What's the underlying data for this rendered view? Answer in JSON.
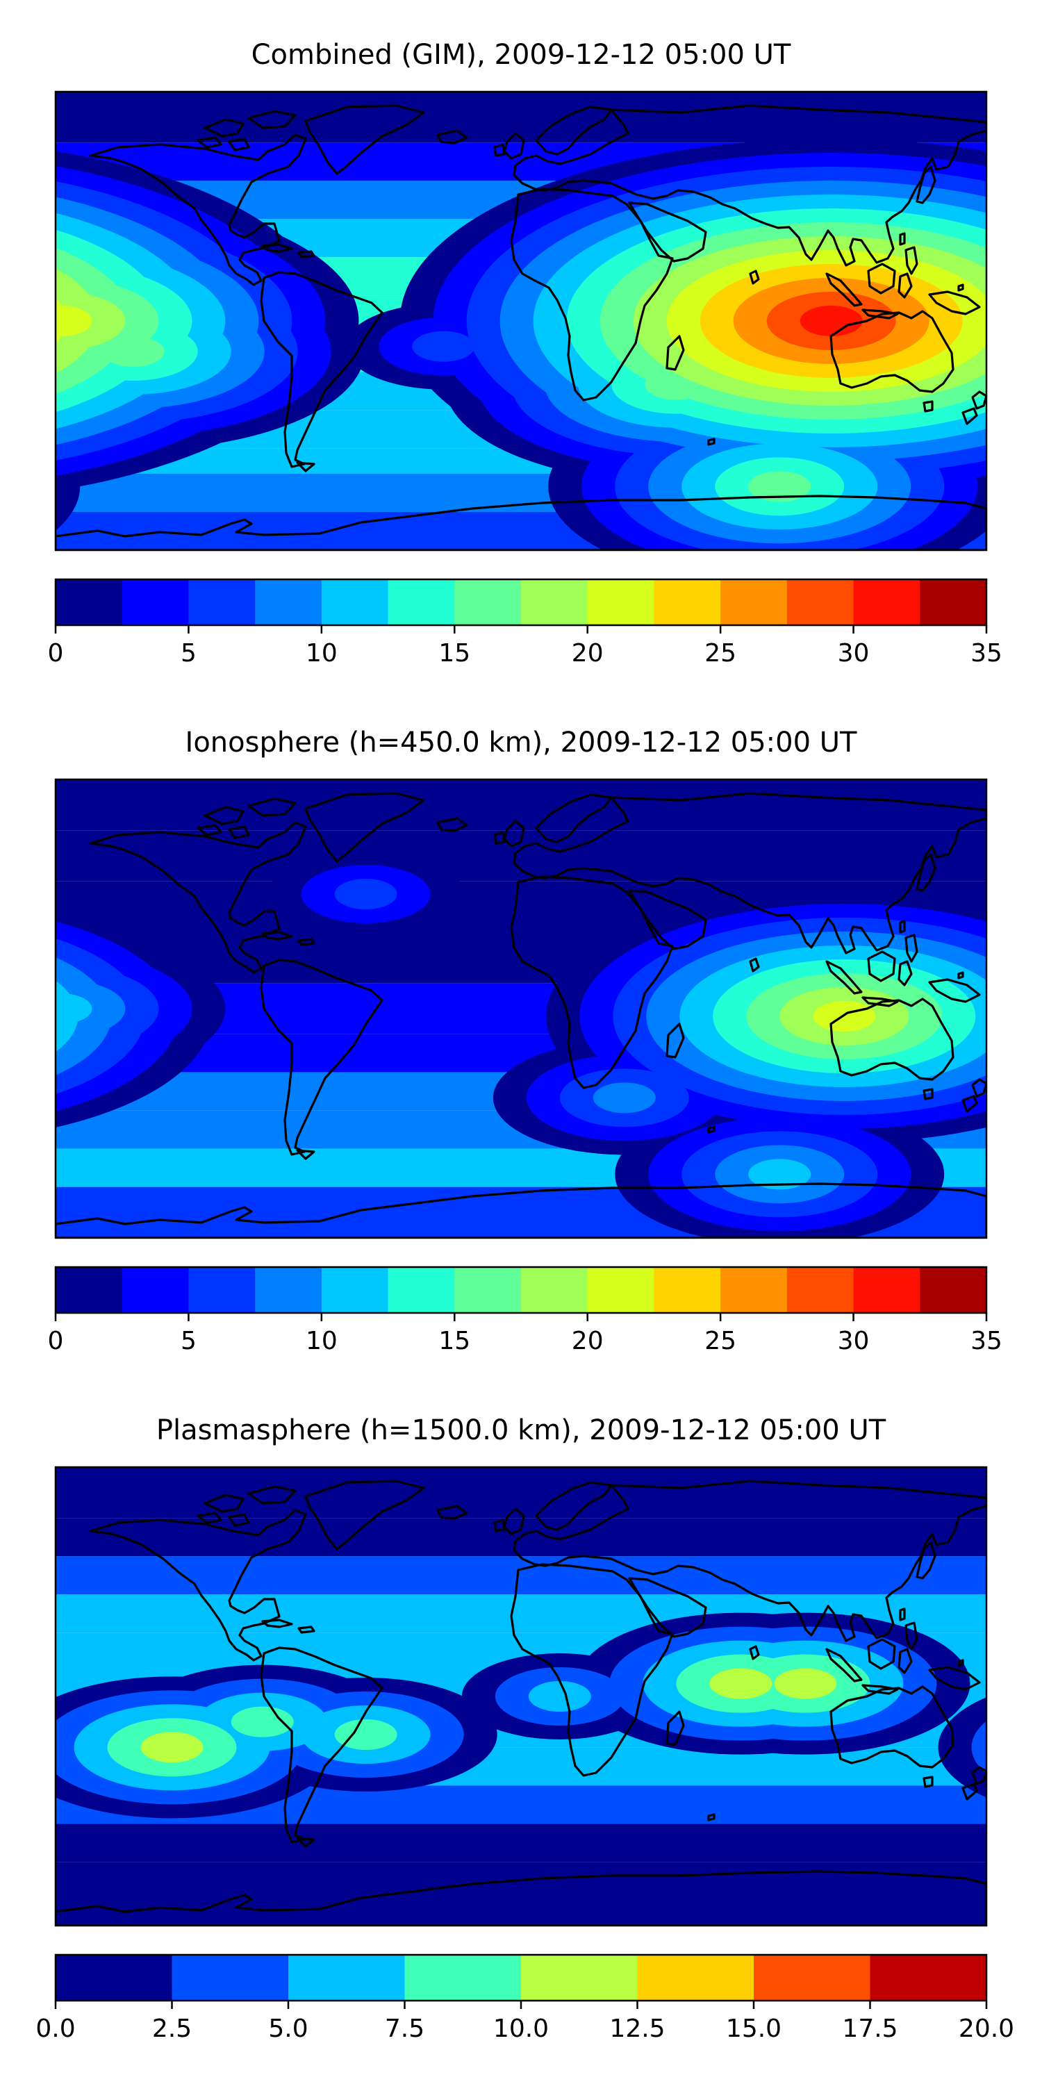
{
  "chart_data": [
    {
      "type": "heatmap",
      "title": "Combined (GIM), 2009-12-12 05:00 UT",
      "colorbar": {
        "min": 0,
        "max": 35,
        "step": 2.5,
        "ticks": [
          "0",
          "5",
          "10",
          "15",
          "20",
          "25",
          "30",
          "35"
        ],
        "tick_values": [
          0,
          5,
          10,
          15,
          20,
          25,
          30,
          35
        ],
        "colors": [
          "#00008f",
          "#0000ff",
          "#0035ff",
          "#007fff",
          "#00c8ff",
          "#22ffd4",
          "#60ff97",
          "#a0ff57",
          "#d7ff1d",
          "#ffd300",
          "#ff9200",
          "#ff4d00",
          "#ff1100",
          "#a80000"
        ]
      },
      "blobs": [
        {
          "lon": 120,
          "lat": 0,
          "value": 30
        },
        {
          "lon": 115,
          "lat": 3,
          "value": 25
        },
        {
          "lon": 95,
          "lat": 5,
          "value": 20
        },
        {
          "lon": -178,
          "lat": 0,
          "value": 22
        },
        {
          "lon": -150,
          "lat": -12,
          "value": 17
        },
        {
          "lon": 60,
          "lat": -25,
          "value": 15
        },
        {
          "lon": 100,
          "lat": -65,
          "value": 15
        },
        {
          "lon": 20,
          "lat": 0,
          "value": 10
        },
        {
          "lon": -30,
          "lat": -10,
          "value": 7
        }
      ]
    },
    {
      "type": "heatmap",
      "title": "Ionosphere  (h=450.0 km), 2009-12-12 05:00 UT",
      "colorbar": {
        "min": 0,
        "max": 35,
        "step": 2.5,
        "ticks": [
          "0",
          "5",
          "10",
          "15",
          "20",
          "25",
          "30",
          "35"
        ],
        "tick_values": [
          0,
          5,
          10,
          15,
          20,
          25,
          30,
          35
        ],
        "colors": [
          "#00008f",
          "#0000ff",
          "#0035ff",
          "#007fff",
          "#00c8ff",
          "#22ffd4",
          "#60ff97",
          "#a0ff57",
          "#d7ff1d",
          "#ffd300",
          "#ff9200",
          "#ff4d00",
          "#ff1100",
          "#a80000"
        ]
      },
      "blobs": [
        {
          "lon": 125,
          "lat": -3,
          "value": 20
        },
        {
          "lon": 110,
          "lat": 0,
          "value": 15
        },
        {
          "lon": 80,
          "lat": 5,
          "value": 12
        },
        {
          "lon": 100,
          "lat": -65,
          "value": 12
        },
        {
          "lon": -178,
          "lat": 0,
          "value": 11
        },
        {
          "lon": 40,
          "lat": -35,
          "value": 9
        },
        {
          "lon": -60,
          "lat": 45,
          "value": 6
        }
      ]
    },
    {
      "type": "heatmap",
      "title": "Plasmasphere (h=1500.0 km), 2009-12-12 05:00 UT",
      "colorbar": {
        "min": 0,
        "max": 20,
        "step": 2.5,
        "ticks": [
          "0.0",
          "2.5",
          "5.0",
          "7.5",
          "10.0",
          "12.5",
          "15.0",
          "17.5",
          "20.0"
        ],
        "tick_values": [
          0,
          2.5,
          5,
          7.5,
          10,
          12.5,
          15,
          17.5,
          20
        ],
        "colors": [
          "#00008f",
          "#0050ff",
          "#00c0ff",
          "#40ffb7",
          "#b7ff40",
          "#ffd000",
          "#ff5000",
          "#c00000"
        ]
      },
      "blobs": [
        {
          "lon": 85,
          "lat": 5,
          "value": 10.5
        },
        {
          "lon": 110,
          "lat": 5,
          "value": 10.5
        },
        {
          "lon": -135,
          "lat": -20,
          "value": 10.5
        },
        {
          "lon": 80,
          "lat": 0,
          "value": 8.5
        },
        {
          "lon": -100,
          "lat": -10,
          "value": 8
        },
        {
          "lon": -60,
          "lat": -15,
          "value": 8.5
        },
        {
          "lon": 15,
          "lat": 0,
          "value": 7
        }
      ]
    }
  ]
}
